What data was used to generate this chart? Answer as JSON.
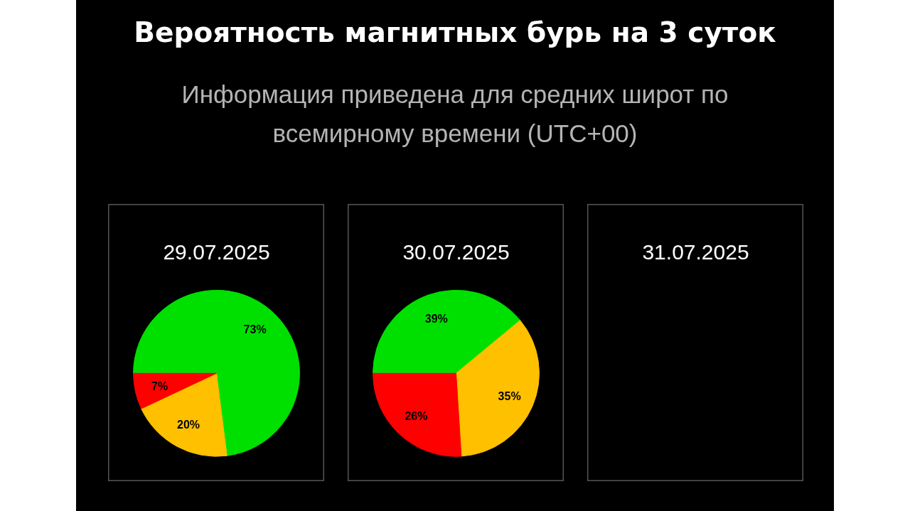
{
  "chart_data": [
    {
      "type": "other",
      "title": "Вероятность магнитных бурь на 3 суток",
      "subtitle": "Информация приведена для средних широт по всемирному времени (UTC+00)"
    },
    {
      "type": "pie",
      "title": "29.07.2025",
      "categories": [
        null,
        null,
        null
      ],
      "values": [
        73,
        20,
        7
      ],
      "colors": [
        "#00e000",
        "#ffc000",
        "#ff0000"
      ],
      "value_labels": [
        "73%",
        "20%",
        "7%"
      ]
    },
    {
      "type": "pie",
      "title": "30.07.2025",
      "categories": [
        null,
        null,
        null
      ],
      "values": [
        39,
        35,
        26
      ],
      "colors": [
        "#00e000",
        "#ffc000",
        "#ff0000"
      ],
      "value_labels": [
        "39%",
        "35%",
        "26%"
      ]
    },
    {
      "type": "other",
      "title": "31.07.2025"
    }
  ]
}
